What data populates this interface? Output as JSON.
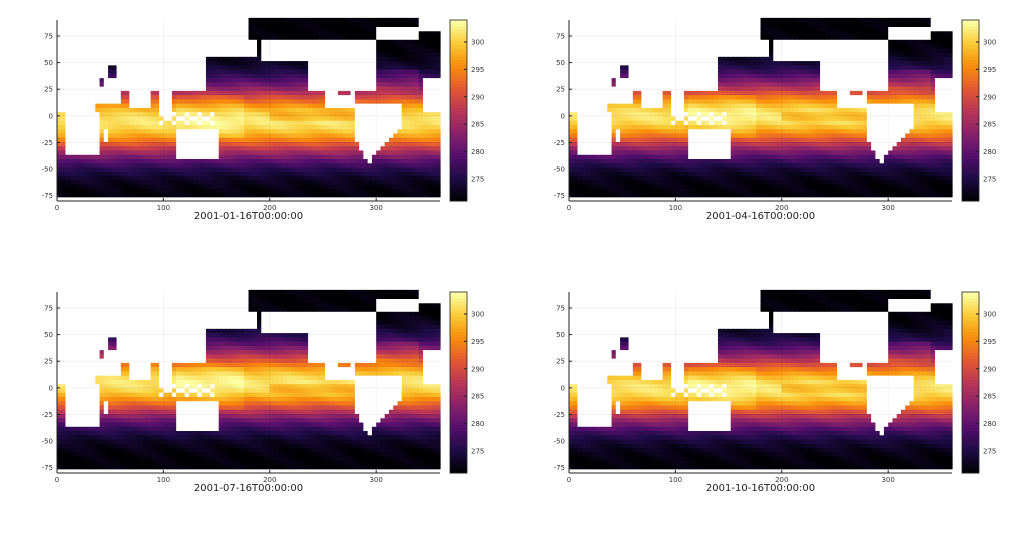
{
  "chart_data": [
    {
      "type": "heatmap",
      "title": "",
      "xlabel": "2001-01-16T00:00:00",
      "ylabel": "",
      "xlim": [
        0,
        360
      ],
      "ylim": [
        -80,
        90
      ],
      "xticks": [
        0,
        100,
        200,
        300
      ],
      "yticks": [
        -75,
        -50,
        -25,
        0,
        25,
        50,
        75
      ],
      "colorbar": {
        "range": [
          271,
          304
        ],
        "ticks": [
          275,
          280,
          285,
          290,
          295,
          300
        ],
        "colormap": "inferno"
      },
      "month": 1
    },
    {
      "type": "heatmap",
      "title": "",
      "xlabel": "2001-04-16T00:00:00",
      "ylabel": "",
      "xlim": [
        0,
        360
      ],
      "ylim": [
        -80,
        90
      ],
      "xticks": [
        0,
        100,
        200,
        300
      ],
      "yticks": [
        -75,
        -50,
        -25,
        0,
        25,
        50,
        75
      ],
      "colorbar": {
        "range": [
          271,
          304
        ],
        "ticks": [
          275,
          280,
          285,
          290,
          295,
          300
        ],
        "colormap": "inferno"
      },
      "month": 4
    },
    {
      "type": "heatmap",
      "title": "",
      "xlabel": "2001-07-16T00:00:00",
      "ylabel": "",
      "xlim": [
        0,
        360
      ],
      "ylim": [
        -80,
        90
      ],
      "xticks": [
        0,
        100,
        200,
        300
      ],
      "yticks": [
        -75,
        -50,
        -25,
        0,
        25,
        50,
        75
      ],
      "colorbar": {
        "range": [
          271,
          304
        ],
        "ticks": [
          275,
          280,
          285,
          290,
          295,
          300
        ],
        "colormap": "inferno"
      },
      "month": 7
    },
    {
      "type": "heatmap",
      "title": "",
      "xlabel": "2001-10-16T00:00:00",
      "ylabel": "",
      "xlim": [
        0,
        360
      ],
      "ylim": [
        -80,
        90
      ],
      "xticks": [
        0,
        100,
        200,
        300
      ],
      "yticks": [
        -75,
        -50,
        -25,
        0,
        25,
        50,
        75
      ],
      "colorbar": {
        "range": [
          271,
          304
        ],
        "ticks": [
          275,
          280,
          285,
          290,
          295,
          300
        ],
        "colormap": "inferno"
      },
      "month": 10
    }
  ],
  "colors": {
    "inferno": [
      "#000004",
      "#1f0c48",
      "#550f6d",
      "#88226a",
      "#ba3655",
      "#e35933",
      "#f98c0a",
      "#f9c932",
      "#fcffa4"
    ],
    "land": "#ffffff",
    "axis": "#222222"
  }
}
